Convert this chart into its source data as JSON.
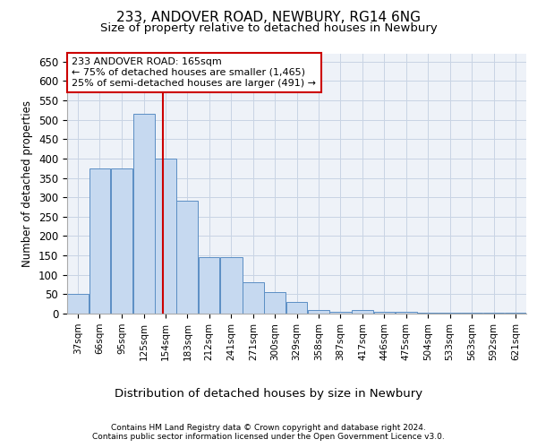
{
  "title1": "233, ANDOVER ROAD, NEWBURY, RG14 6NG",
  "title2": "Size of property relative to detached houses in Newbury",
  "xlabel": "Distribution of detached houses by size in Newbury",
  "ylabel": "Number of detached properties",
  "footer1": "Contains HM Land Registry data © Crown copyright and database right 2024.",
  "footer2": "Contains public sector information licensed under the Open Government Licence v3.0.",
  "annotation_title": "233 ANDOVER ROAD: 165sqm",
  "annotation_line1": "← 75% of detached houses are smaller (1,465)",
  "annotation_line2": "25% of semi-detached houses are larger (491) →",
  "red_line_x": 165,
  "bar_left_edges": [
    37,
    66,
    95,
    125,
    154,
    183,
    212,
    241,
    271,
    300,
    329,
    358,
    387,
    417,
    446,
    475,
    504,
    533,
    563,
    592,
    621
  ],
  "bar_widths": [
    29,
    29,
    30,
    29,
    29,
    29,
    29,
    30,
    29,
    29,
    29,
    29,
    30,
    29,
    29,
    29,
    29,
    30,
    29,
    29,
    29
  ],
  "bar_heights": [
    50,
    375,
    375,
    515,
    400,
    290,
    145,
    145,
    80,
    55,
    30,
    10,
    5,
    10,
    4,
    4,
    2,
    2,
    2,
    2,
    2
  ],
  "bar_color": "#c6d9f0",
  "bar_edge_color": "#5b8ec4",
  "red_line_color": "#cc0000",
  "grid_color": "#c8d4e4",
  "bg_color": "#eef2f8",
  "ylim": [
    0,
    670
  ],
  "yticks": [
    0,
    50,
    100,
    150,
    200,
    250,
    300,
    350,
    400,
    450,
    500,
    550,
    600,
    650
  ],
  "annotation_box_color": "#ffffff",
  "annotation_box_edge": "#cc0000",
  "title1_fontsize": 11,
  "title2_fontsize": 9.5
}
